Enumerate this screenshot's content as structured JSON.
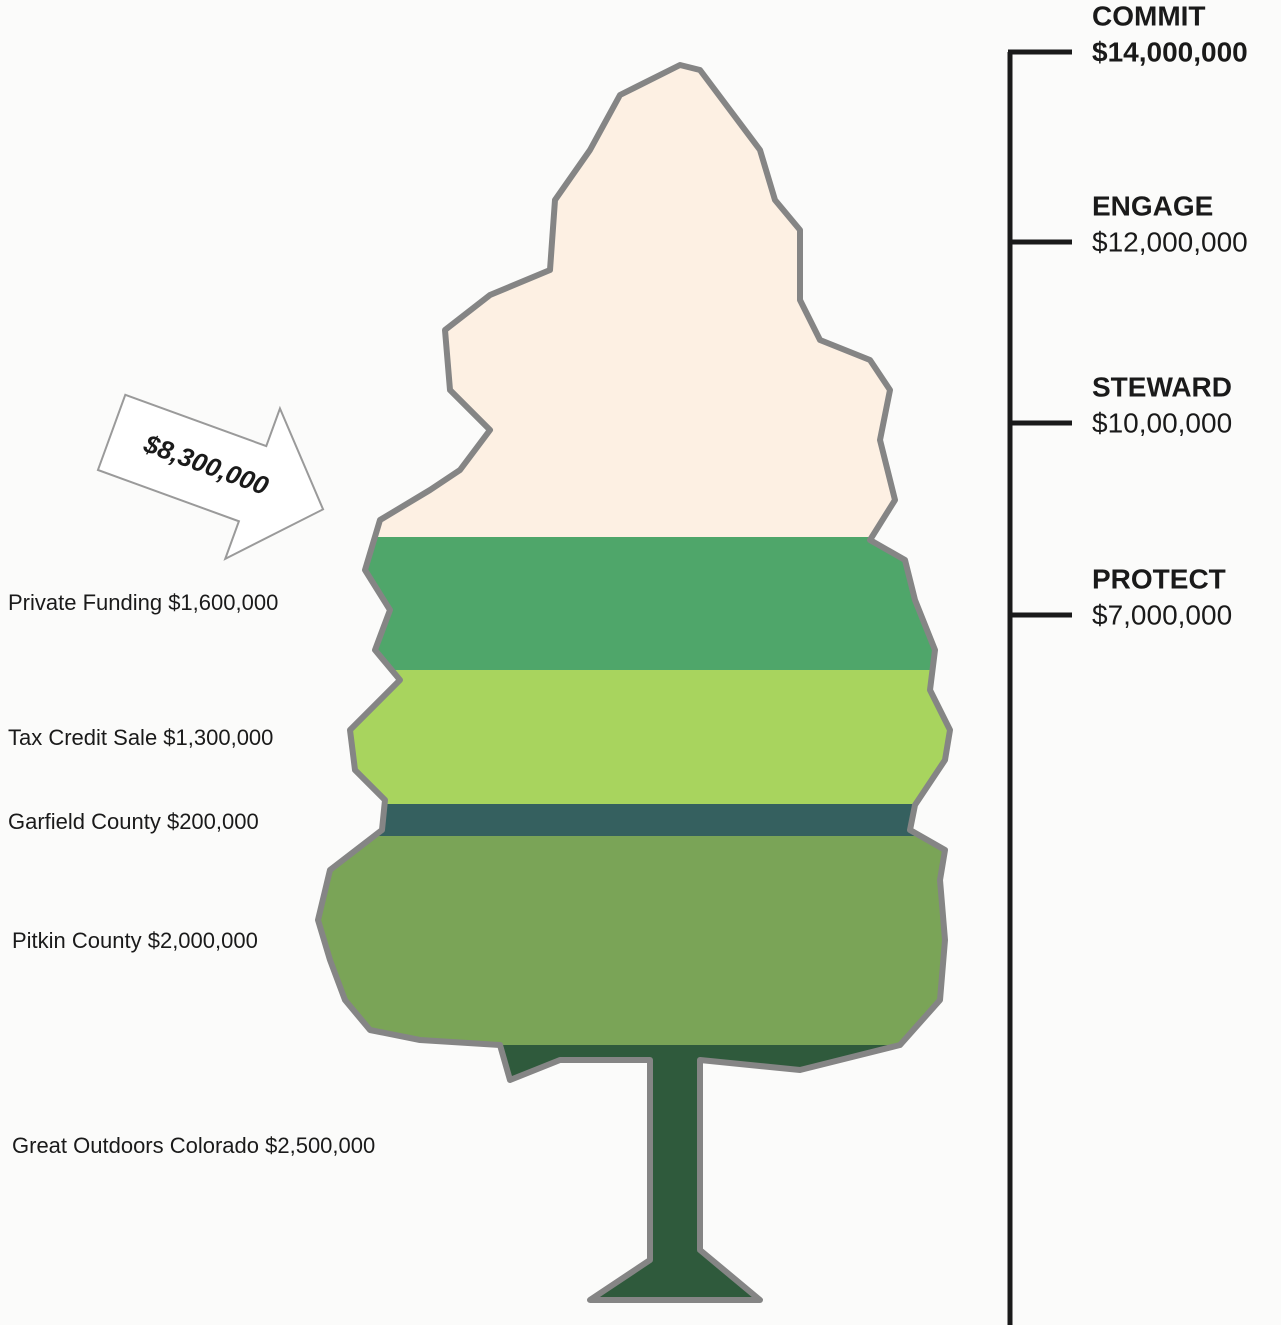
{
  "callout": "$8,300,000",
  "milestones": [
    {
      "name": "COMMIT",
      "amount": "$14,000,000"
    },
    {
      "name": "ENGAGE",
      "amount": "$12,000,000"
    },
    {
      "name": "STEWARD",
      "amount": "$10,00,000"
    },
    {
      "name": "PROTECT",
      "amount": "$7,000,000"
    }
  ],
  "funding_sources": [
    "Private Funding $1,600,000",
    "Tax Credit Sale $1,300,000",
    "Garfield County $200,000",
    "Pitkin County $2,000,000",
    "Great Outdoors Colorado $2,500,000"
  ]
}
